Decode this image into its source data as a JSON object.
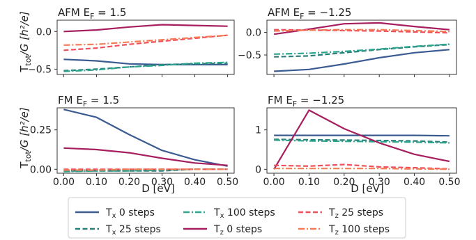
{
  "figure": {
    "xlabel": "D [eV]",
    "ylabel_main": "T",
    "ylabel_sub": "tot",
    "ylabel_rest": "/G [h²/e]"
  },
  "legend": {
    "placement": "bottom-center",
    "columns": 3,
    "items": [
      {
        "main": "T",
        "sub": "x",
        "rest": " 0 steps",
        "color": "#3b5b92",
        "dash": "solid"
      },
      {
        "main": "T",
        "sub": "x",
        "rest": " 25 steps",
        "color": "#2a7f7a",
        "dash": "dashed"
      },
      {
        "main": "T",
        "sub": "x",
        "rest": " 100 steps",
        "color": "#2ca58d",
        "dash": "dashdot"
      },
      {
        "main": "T",
        "sub": "z",
        "rest": " 0 steps",
        "color": "#a61e5e",
        "dash": "solid"
      },
      {
        "main": "T",
        "sub": "z",
        "rest": " 25 steps",
        "color": "#ef4f5b",
        "dash": "dashed"
      },
      {
        "main": "T",
        "sub": "z",
        "rest": " 100 steps",
        "color": "#f47c56",
        "dash": "dashdot"
      }
    ]
  },
  "chart_data": [
    {
      "type": "line",
      "title_main": "AFM E",
      "title_sub": "F",
      "title_rest": " = 1.5",
      "xlim": [
        -0.02,
        0.52
      ],
      "ylim": [
        -0.57,
        0.15
      ],
      "yticks": [
        0.0,
        -0.5
      ],
      "ytick_labels": [
        "0.0",
        "−0.5"
      ],
      "x": [
        0.0,
        0.1,
        0.2,
        0.3,
        0.4,
        0.5
      ],
      "series": [
        {
          "values": [
            -0.37,
            -0.39,
            -0.43,
            -0.44,
            -0.44,
            -0.44
          ]
        },
        {
          "values": [
            -0.52,
            -0.5,
            -0.47,
            -0.44,
            -0.43,
            -0.42
          ]
        },
        {
          "values": [
            -0.53,
            -0.51,
            -0.47,
            -0.45,
            -0.42,
            -0.41
          ]
        },
        {
          "values": [
            0.0,
            0.02,
            0.06,
            0.09,
            0.08,
            0.07
          ]
        },
        {
          "values": [
            -0.25,
            -0.22,
            -0.17,
            -0.13,
            -0.09,
            -0.05
          ]
        },
        {
          "values": [
            -0.18,
            -0.17,
            -0.14,
            -0.11,
            -0.08,
            -0.05
          ]
        }
      ]
    },
    {
      "type": "line",
      "title_main": "AFM E",
      "title_sub": "F",
      "title_rest": " = −1.25",
      "xlim": [
        -0.02,
        0.52
      ],
      "ylim": [
        -0.93,
        0.27
      ],
      "yticks": [
        0.0,
        -0.5
      ],
      "ytick_labels": [
        "0.0",
        "−0.5"
      ],
      "x": [
        0.0,
        0.1,
        0.2,
        0.3,
        0.4,
        0.5
      ],
      "series": [
        {
          "values": [
            -0.86,
            -0.82,
            -0.7,
            -0.56,
            -0.45,
            -0.38
          ]
        },
        {
          "values": [
            -0.54,
            -0.52,
            -0.45,
            -0.38,
            -0.32,
            -0.27
          ]
        },
        {
          "values": [
            -0.48,
            -0.46,
            -0.42,
            -0.37,
            -0.31,
            -0.26
          ]
        },
        {
          "values": [
            -0.04,
            0.07,
            0.19,
            0.21,
            0.13,
            0.06
          ]
        },
        {
          "values": [
            0.06,
            0.05,
            0.04,
            0.03,
            0.01,
            -0.01
          ]
        },
        {
          "values": [
            0.03,
            0.05,
            0.06,
            0.06,
            0.04,
            0.02
          ]
        }
      ]
    },
    {
      "type": "line",
      "title_main": "FM E",
      "title_sub": "F",
      "title_rest": " = 1.5",
      "xlim": [
        -0.02,
        0.52
      ],
      "ylim": [
        -0.025,
        0.39
      ],
      "yticks": [
        0.25,
        0.0
      ],
      "ytick_labels": [
        "0.25",
        "0.00"
      ],
      "x": [
        0.0,
        0.1,
        0.2,
        0.3,
        0.4,
        0.5
      ],
      "series": [
        {
          "values": [
            0.38,
            0.33,
            0.22,
            0.12,
            0.06,
            0.02
          ]
        },
        {
          "values": [
            -0.01,
            -0.01,
            -0.01,
            -0.01,
            0.0,
            0.0
          ]
        },
        {
          "values": [
            -0.015,
            -0.01,
            -0.01,
            -0.005,
            0.0,
            0.0
          ]
        },
        {
          "values": [
            0.135,
            0.125,
            0.105,
            0.07,
            0.04,
            0.025
          ]
        },
        {
          "values": [
            0.0,
            0.0,
            0.0,
            0.0,
            0.0,
            0.0
          ]
        },
        {
          "values": [
            -0.005,
            -0.005,
            0.0,
            0.0,
            0.0,
            0.0
          ]
        }
      ]
    },
    {
      "type": "line",
      "title_main": "FM E",
      "title_sub": "F",
      "title_rest": " = −1.25",
      "xlim": [
        -0.02,
        0.52
      ],
      "ylim": [
        -0.1,
        1.56
      ],
      "yticks": [
        1.0,
        0.0
      ],
      "ytick_labels": [
        "1",
        "0"
      ],
      "x": [
        0.0,
        0.1,
        0.2,
        0.3,
        0.4,
        0.5
      ],
      "series": [
        {
          "values": [
            0.86,
            0.86,
            0.86,
            0.86,
            0.86,
            0.85
          ]
        },
        {
          "values": [
            0.76,
            0.75,
            0.74,
            0.73,
            0.72,
            0.69
          ]
        },
        {
          "values": [
            0.74,
            0.72,
            0.71,
            0.7,
            0.69,
            0.67
          ]
        },
        {
          "values": [
            0.0,
            1.5,
            1.03,
            0.67,
            0.38,
            0.2
          ]
        },
        {
          "values": [
            0.1,
            0.08,
            0.12,
            0.06,
            0.04,
            0.01
          ]
        },
        {
          "values": [
            0.02,
            0.02,
            0.02,
            0.02,
            0.01,
            0.0
          ]
        }
      ]
    }
  ],
  "xticks": [
    0.0,
    0.1,
    0.2,
    0.3,
    0.4,
    0.5
  ],
  "xtick_labels": [
    "0.00",
    "0.10",
    "0.20",
    "0.30",
    "0.40",
    "0.50"
  ]
}
